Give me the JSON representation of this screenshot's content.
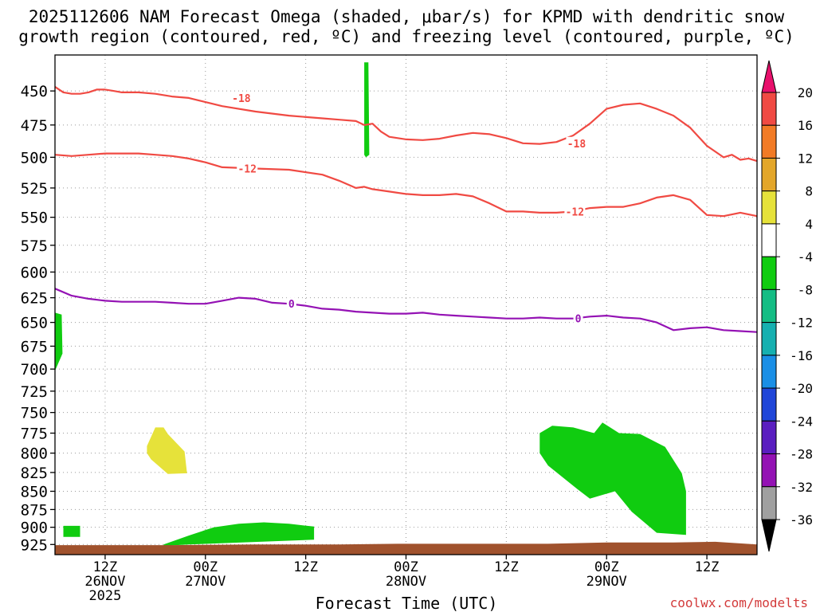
{
  "chart_data": {
    "type": "heatmap",
    "title_lines": [
      "2025112606 NAM Forecast Omega (shaded, μbar/s) for KPMD with dendritic snow",
      "growth region (contoured, red, ºC) and freezing level (contoured, purple, ºC)"
    ],
    "xlabel": "Forecast Time (UTC)",
    "ylabel": "",
    "watermark": "coolwx.com/modelts",
    "x_ticks": [
      {
        "h": 12,
        "lines": [
          "12Z",
          "26NOV",
          "2025"
        ]
      },
      {
        "h": 24,
        "lines": [
          "00Z",
          "27NOV"
        ]
      },
      {
        "h": 36,
        "lines": [
          "12Z"
        ]
      },
      {
        "h": 48,
        "lines": [
          "00Z",
          "28NOV"
        ]
      },
      {
        "h": 60,
        "lines": [
          "12Z"
        ]
      },
      {
        "h": 72,
        "lines": [
          "00Z",
          "29NOV"
        ]
      },
      {
        "h": 84,
        "lines": [
          "12Z"
        ]
      }
    ],
    "xlim": [
      6,
      90
    ],
    "y_ticks": [
      450,
      475,
      500,
      525,
      550,
      575,
      600,
      625,
      650,
      675,
      700,
      725,
      750,
      775,
      800,
      825,
      850,
      875,
      900,
      925
    ],
    "y_axis": "pressure (hPa, log scale)",
    "ylim": [
      940,
      425
    ],
    "grid": true,
    "colorbar": {
      "labels": [
        20,
        16,
        12,
        8,
        4,
        -4,
        -8,
        -12,
        -16,
        -20,
        -24,
        -28,
        -32,
        -36
      ],
      "colors": [
        "#e8106c",
        "#f04a43",
        "#f27b26",
        "#e3a62a",
        "#e6e23a",
        "#ffffff",
        "#10cc10",
        "#14bd84",
        "#16b0b0",
        "#1a8fe6",
        "#2046d8",
        "#5a1ec0",
        "#9412b4",
        "#a0a0a0",
        "#000000"
      ]
    },
    "contours": [
      {
        "type": "temperature",
        "level": -18,
        "color": "#f04a43",
        "x": [
          6,
          7,
          8,
          9,
          10,
          11,
          12,
          13,
          14,
          16,
          18,
          20,
          22,
          24,
          26,
          30,
          34,
          38,
          40,
          42,
          43,
          44,
          45,
          46,
          48,
          50,
          52,
          54,
          56,
          58,
          60,
          62,
          64,
          66,
          68,
          70,
          72,
          74,
          76,
          78,
          80,
          82,
          84,
          86,
          87,
          88,
          89,
          90
        ],
        "y": [
          447,
          451,
          452,
          452,
          451,
          449,
          449,
          450,
          451,
          451,
          452,
          454,
          455,
          458,
          461,
          465,
          468,
          470,
          471,
          472,
          475,
          474,
          480,
          484,
          486,
          486.5,
          485.5,
          483,
          481,
          482,
          485,
          489,
          489.5,
          488,
          483,
          474,
          463,
          460,
          459,
          463,
          468,
          477,
          491,
          500,
          498,
          502,
          501,
          503
        ]
      },
      {
        "type": "temperature",
        "level": -12,
        "color": "#f04a43",
        "x": [
          6,
          8,
          10,
          12,
          14,
          16,
          18,
          20,
          22,
          24,
          26,
          30,
          34,
          38,
          40,
          42,
          43,
          44,
          46,
          48,
          50,
          52,
          54,
          56,
          58,
          60,
          62,
          64,
          66,
          68,
          70,
          72,
          74,
          76,
          78,
          80,
          82,
          84,
          86,
          88,
          90
        ],
        "y": [
          498,
          499,
          498,
          497,
          497,
          497,
          498,
          499,
          501,
          504,
          508,
          509,
          510,
          514,
          519,
          525,
          524,
          526,
          528,
          530,
          531,
          531,
          530,
          532,
          538,
          545,
          545,
          546,
          546,
          545,
          542,
          541,
          541,
          538,
          533,
          531,
          535,
          548,
          549,
          546,
          549
        ]
      },
      {
        "type": "freezing",
        "level": 0,
        "color": "#9412b4",
        "x": [
          6,
          8,
          10,
          12,
          14,
          16,
          18,
          20,
          22,
          24,
          26,
          28,
          30,
          32,
          34,
          36,
          38,
          40,
          42,
          44,
          46,
          48,
          50,
          52,
          54,
          56,
          58,
          60,
          62,
          64,
          66,
          68,
          70,
          72,
          74,
          76,
          78,
          80,
          82,
          84,
          86,
          88,
          90
        ],
        "y": [
          616,
          623,
          626,
          628,
          629,
          629,
          629,
          630,
          631,
          631,
          628,
          625,
          626,
          630,
          631,
          633,
          636,
          637,
          639,
          640,
          641,
          641,
          640,
          642,
          643,
          644,
          645,
          646,
          646,
          645,
          646,
          646,
          644,
          643,
          645,
          646,
          650,
          658,
          656,
          655,
          658,
          659,
          660
        ]
      }
    ],
    "contour_labels": [
      {
        "text": "-18",
        "x": 28.3,
        "y": 455
      },
      {
        "text": "-18",
        "x": 68.4,
        "y": 489
      },
      {
        "text": "-12",
        "x": 29.0,
        "y": 509
      },
      {
        "text": "-12",
        "x": 68.2,
        "y": 545
      },
      {
        "text": "0",
        "x": 34.3,
        "y": 631
      },
      {
        "text": "0",
        "x": 68.6,
        "y": 646
      }
    ],
    "shaded_regions": [
      {
        "value_range": "-8 to -4",
        "color": "#10cc10",
        "description": "narrow column near 42Z",
        "x": [
          43.0,
          43.5,
          43.6,
          43.2,
          43.0
        ],
        "y": [
          430,
          430,
          498,
          500,
          498
        ]
      },
      {
        "value_range": "-8 to -4",
        "color": "#10cc10",
        "description": "left edge 650-700",
        "x": [
          6.0,
          6.8,
          6.9,
          6.0
        ],
        "y": [
          640,
          642,
          683,
          702
        ]
      },
      {
        "value_range": "4 to 8",
        "color": "#e6e23a",
        "description": "rising motion blob near 18Z",
        "x": [
          17.0,
          18.0,
          19.0,
          19.5,
          21.5,
          21.8,
          19.5,
          17.5,
          17.0
        ],
        "y": [
          791,
          768,
          768,
          776,
          798,
          826,
          827,
          808,
          800
        ]
      },
      {
        "value_range": "-8 to -4",
        "color": "#10cc10",
        "description": "small patch near 900",
        "x": [
          7.0,
          9.0,
          9.0,
          7.0
        ],
        "y": [
          898,
          898,
          914,
          914
        ]
      },
      {
        "value_range": "-8 to -4",
        "color": "#10cc10",
        "description": "surface band 27NOV",
        "x": [
          19.0,
          22.0,
          25.0,
          28.0,
          31.0,
          34.0,
          37.0,
          37.0,
          22.0,
          19.0
        ],
        "y": [
          925,
          912,
          900,
          895,
          893,
          895,
          899,
          918,
          925,
          927
        ]
      },
      {
        "value_range": "-8 to -4",
        "color": "#10cc10",
        "description": "large region late 28NOV-29NOV",
        "x": [
          64.0,
          65.5,
          68.0,
          70.5,
          71.5,
          73.5,
          76.0,
          79.0,
          81.0,
          81.5,
          81.5,
          78.0,
          75.0,
          73.0,
          70.0,
          68.5,
          65.0,
          64.0
        ],
        "y": [
          775,
          766,
          768,
          775,
          762,
          775,
          776,
          792,
          826,
          850,
          911,
          908,
          878,
          850,
          860,
          847,
          816,
          800
        ]
      }
    ],
    "terrain": {
      "color": "#a0522d",
      "x": [
        6,
        20,
        30,
        40,
        47,
        55,
        65,
        72,
        80,
        85,
        90
      ],
      "y": [
        926,
        926,
        925,
        925,
        924,
        924,
        924,
        922,
        922,
        921,
        925
      ]
    }
  }
}
